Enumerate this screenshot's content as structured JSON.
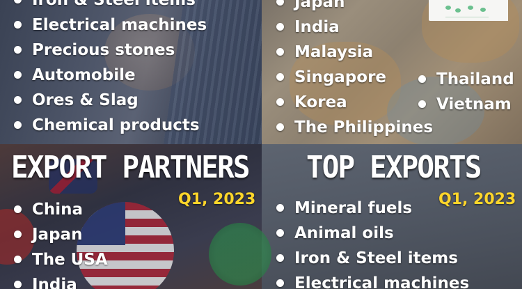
{
  "top_left": {
    "items": [
      "Iron & Steel items",
      "Electrical machines",
      "Precious stones",
      "Automobile",
      "Ores & Slag",
      "Chemical products"
    ]
  },
  "top_right": {
    "items_col1": [
      "Japan",
      "India",
      "Malaysia",
      "Singapore",
      "Korea",
      "The Philippines"
    ],
    "items_col2": [
      "Thailand",
      "Vietnam"
    ]
  },
  "export_partners": {
    "title": "EXPORT PARTNERS",
    "period": "Q1, 2023",
    "items": [
      "China",
      "Japan",
      "The USA",
      "India"
    ]
  },
  "top_exports": {
    "title": "TOP EXPORTS",
    "period": "Q1, 2023",
    "items": [
      "Mineral fuels",
      "Animal oils",
      "Iron & Steel items",
      "Electrical machines"
    ]
  }
}
